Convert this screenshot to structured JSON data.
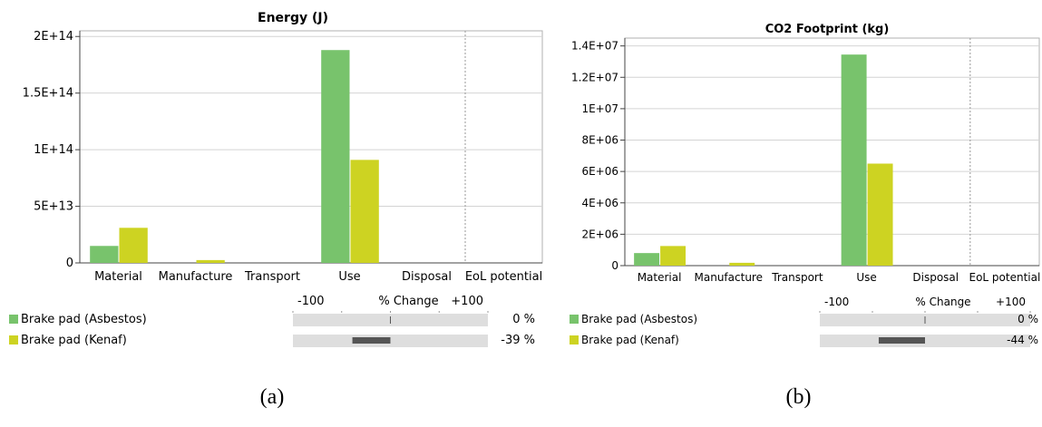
{
  "charts": [
    {
      "id": "a",
      "caption": "(a)",
      "title": "Energy (J)",
      "type": "bar",
      "categories": [
        "Material",
        "Manufacture",
        "Transport",
        "Use",
        "Disposal",
        "EoL potential"
      ],
      "yticks": [
        {
          "value": 0,
          "label": "0"
        },
        {
          "value": 50000000000000.0,
          "label": "5E+13"
        },
        {
          "value": 100000000000000.0,
          "label": "1E+14"
        },
        {
          "value": 150000000000000.0,
          "label": "1.5E+14"
        },
        {
          "value": 200000000000000.0,
          "label": "2E+14"
        }
      ],
      "ylim": [
        0,
        205000000000000.0
      ],
      "series": [
        {
          "name": "Brake pad (Asbestos)",
          "color": "#78c36c",
          "values": [
            15000000000000.0,
            0,
            0,
            188000000000000.0,
            0,
            0
          ],
          "change": "0 %",
          "change_value": 0
        },
        {
          "name": "Brake pad (Kenaf)",
          "color": "#cdd322",
          "values": [
            31000000000000.0,
            2500000000000.0,
            0,
            91000000000000.0,
            0,
            0
          ],
          "change": "-39 %",
          "change_value": -39
        }
      ],
      "change_axis": {
        "min_label": "-100",
        "title": "% Change",
        "max_label": "+100"
      }
    },
    {
      "id": "b",
      "caption": "(b)",
      "title": "CO2 Footprint (kg)",
      "type": "bar",
      "categories": [
        "Material",
        "Manufacture",
        "Transport",
        "Use",
        "Disposal",
        "EoL potential"
      ],
      "yticks": [
        {
          "value": 0,
          "label": "0"
        },
        {
          "value": 2000000.0,
          "label": "2E+06"
        },
        {
          "value": 4000000.0,
          "label": "4E+06"
        },
        {
          "value": 6000000.0,
          "label": "6E+06"
        },
        {
          "value": 8000000.0,
          "label": "8E+06"
        },
        {
          "value": 10000000.0,
          "label": "1E+07"
        },
        {
          "value": 12000000.0,
          "label": "1.2E+07"
        },
        {
          "value": 14000000.0,
          "label": "1.4E+07"
        }
      ],
      "ylim": [
        0,
        14500000.0
      ],
      "series": [
        {
          "name": "Brake pad (Asbestos)",
          "color": "#78c36c",
          "values": [
            800000.0,
            0,
            0,
            13450000.0,
            0,
            0
          ],
          "change": "0 %",
          "change_value": 0
        },
        {
          "name": "Brake pad (Kenaf)",
          "color": "#cdd322",
          "values": [
            1250000.0,
            180000.0,
            0,
            6500000.0,
            0,
            0
          ],
          "change": "-44 %",
          "change_value": -44
        }
      ],
      "change_axis": {
        "min_label": "-100",
        "title": "% Change",
        "max_label": "+100"
      }
    }
  ]
}
